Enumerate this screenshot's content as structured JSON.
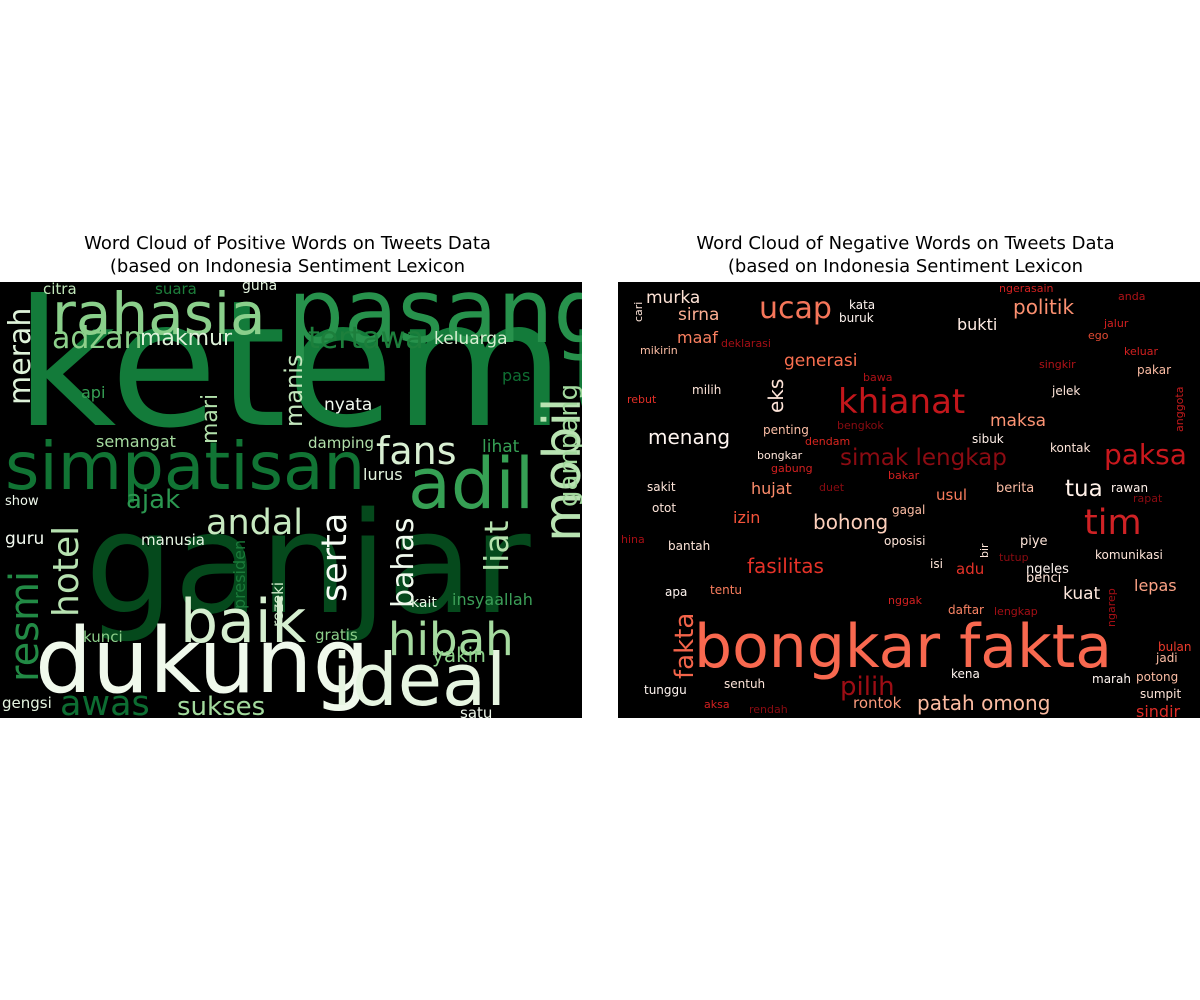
{
  "chart_data": [
    {
      "type": "wordcloud",
      "title": "Word Cloud of Positive Words on Tweets Data\n(based on Indonesia Sentiment Lexicon",
      "colormap": "Greens",
      "background": "#000000",
      "words": [
        {
          "text": "ketemu",
          "size": 1.0,
          "color": "#137b3a"
        },
        {
          "text": "ganjar",
          "size": 0.95,
          "color": "#05491c"
        },
        {
          "text": "dukung",
          "size": 0.62,
          "color": "#f0f9ec"
        },
        {
          "text": "pasang",
          "size": 0.6,
          "color": "#27924c"
        },
        {
          "text": "simpatisan",
          "size": 0.56,
          "color": "#117434"
        },
        {
          "text": "rahasia",
          "size": 0.58,
          "color": "#8acf8b"
        },
        {
          "text": "adil",
          "size": 0.52,
          "color": "#36a054"
        },
        {
          "text": "ideal",
          "size": 0.5,
          "color": "#e6f5e1"
        },
        {
          "text": "baik",
          "size": 0.45,
          "color": "#d6efd0"
        },
        {
          "text": "mobil",
          "size": 0.42,
          "color": "#b8e3b2"
        },
        {
          "text": "hibah",
          "size": 0.36,
          "color": "#a6dba0"
        },
        {
          "text": "fans",
          "size": 0.3,
          "color": "#d9f0d3"
        },
        {
          "text": "andal",
          "size": 0.28,
          "color": "#c7e9c0"
        },
        {
          "text": "serta",
          "size": 0.28,
          "color": "#f7fcf5"
        },
        {
          "text": "hotel",
          "size": 0.3,
          "color": "#b7e2b1"
        },
        {
          "text": "resmi",
          "size": 0.34,
          "color": "#228a45"
        },
        {
          "text": "awas",
          "size": 0.3,
          "color": "#0d6d32"
        },
        {
          "text": "adzan",
          "size": 0.26,
          "color": "#8ccf8a"
        },
        {
          "text": "merah",
          "size": 0.26,
          "color": "#dff3da"
        },
        {
          "text": "bahas",
          "size": 0.26,
          "color": "#f0f9ed"
        },
        {
          "text": "liat",
          "size": 0.26,
          "color": "#b4e1ad"
        },
        {
          "text": "tertawa",
          "size": 0.26,
          "color": "#1d7f3c"
        },
        {
          "text": "gampang",
          "size": 0.22,
          "color": "#a3d99e"
        },
        {
          "text": "sukses",
          "size": 0.2,
          "color": "#a3da9d"
        },
        {
          "text": "manis",
          "size": 0.2,
          "color": "#c3e7bd"
        },
        {
          "text": "ajak",
          "size": 0.2,
          "color": "#2b9750"
        },
        {
          "text": "makmur",
          "size": 0.18,
          "color": "#dff2da"
        },
        {
          "text": "mari",
          "size": 0.18,
          "color": "#b2e0ab"
        },
        {
          "text": "yakin",
          "size": 0.16,
          "color": "#8bcf89"
        },
        {
          "text": "insyaallah",
          "size": 0.13,
          "color": "#3c9f58"
        },
        {
          "text": "keluarga",
          "size": 0.13,
          "color": "#d8efd2"
        },
        {
          "text": "nyata",
          "size": 0.13,
          "color": "#f2faef"
        },
        {
          "text": "lurus",
          "size": 0.13,
          "color": "#e3f4de"
        },
        {
          "text": "damping",
          "size": 0.12,
          "color": "#b1dfaa"
        },
        {
          "text": "semangat",
          "size": 0.12,
          "color": "#a6dba0"
        },
        {
          "text": "lihat",
          "size": 0.13,
          "color": "#36a055"
        },
        {
          "text": "manusia",
          "size": 0.12,
          "color": "#e8f6e4"
        },
        {
          "text": "guru",
          "size": 0.14,
          "color": "#f3faf0"
        },
        {
          "text": "kunci",
          "size": 0.12,
          "color": "#8ccf8a"
        },
        {
          "text": "gratis",
          "size": 0.12,
          "color": "#8ccf8a"
        },
        {
          "text": "api",
          "size": 0.13,
          "color": "#36a055"
        },
        {
          "text": "pas",
          "size": 0.13,
          "color": "#0f6e32"
        },
        {
          "text": "citra",
          "size": 0.12,
          "color": "#c0e6b9"
        },
        {
          "text": "suara",
          "size": 0.12,
          "color": "#1d7e3b"
        },
        {
          "text": "guna",
          "size": 0.11,
          "color": "#e5f5e0"
        },
        {
          "text": "show",
          "size": 0.11,
          "color": "#f0f9ec"
        },
        {
          "text": "presiden",
          "size": 0.13,
          "color": "#1a7c3a"
        },
        {
          "text": "rezeki",
          "size": 0.12,
          "color": "#d3eecd"
        },
        {
          "text": "kait",
          "size": 0.11,
          "color": "#e8f6e4"
        },
        {
          "text": "satu",
          "size": 0.12,
          "color": "#f0f9ec"
        },
        {
          "text": "gengsi",
          "size": 0.12,
          "color": "#e5f5e0"
        }
      ]
    },
    {
      "type": "wordcloud",
      "title": "Word Cloud of Negative Words on Tweets Data\n(based on Indonesia Sentiment Lexicon",
      "colormap": "Reds",
      "background": "#000000",
      "words": [
        {
          "text": "bongkar fakta",
          "size": 1.0,
          "color": "#f8684f"
        },
        {
          "text": "khianat",
          "size": 0.5,
          "color": "#c3161b"
        },
        {
          "text": "tim",
          "size": 0.5,
          "color": "#d02225"
        },
        {
          "text": "ucap",
          "size": 0.44,
          "color": "#f6765a"
        },
        {
          "text": "paksa",
          "size": 0.4,
          "color": "#c9181d"
        },
        {
          "text": "pilih",
          "size": 0.38,
          "color": "#9c0d14"
        },
        {
          "text": "simak lengkap",
          "size": 0.36,
          "color": "#8c0b12"
        },
        {
          "text": "fakta",
          "size": 0.36,
          "color": "#f3644a"
        },
        {
          "text": "patah omong",
          "size": 0.34,
          "color": "#fcbca2"
        },
        {
          "text": "politik",
          "size": 0.33,
          "color": "#fc9070"
        },
        {
          "text": "eks",
          "size": 0.33,
          "color": "#fee4d8"
        },
        {
          "text": "tua",
          "size": 0.33,
          "color": "#fff0e8"
        },
        {
          "text": "menang",
          "size": 0.3,
          "color": "#fff5f0"
        },
        {
          "text": "bohong",
          "size": 0.3,
          "color": "#fdd0bc"
        },
        {
          "text": "fasilitas",
          "size": 0.3,
          "color": "#e53228"
        },
        {
          "text": "sirna",
          "size": 0.26,
          "color": "#fcae92"
        },
        {
          "text": "maksa",
          "size": 0.25,
          "color": "#fc9474"
        },
        {
          "text": "generasi",
          "size": 0.25,
          "color": "#fb7050"
        },
        {
          "text": "maaf",
          "size": 0.25,
          "color": "#fb8060"
        },
        {
          "text": "murka",
          "size": 0.25,
          "color": "#fee3d6"
        },
        {
          "text": "bukti",
          "size": 0.24,
          "color": "#ffece4"
        },
        {
          "text": "hujat",
          "size": 0.24,
          "color": "#fc8c6b"
        },
        {
          "text": "izin",
          "size": 0.24,
          "color": "#f5533b"
        },
        {
          "text": "kuat",
          "size": 0.24,
          "color": "#fee8dd"
        },
        {
          "text": "lepas",
          "size": 0.24,
          "color": "#fca285"
        },
        {
          "text": "usul",
          "size": 0.22,
          "color": "#fb7d5d"
        },
        {
          "text": "adu",
          "size": 0.22,
          "color": "#e53228"
        },
        {
          "text": "rontok",
          "size": 0.22,
          "color": "#fc9c7d"
        },
        {
          "text": "sindir",
          "size": 0.22,
          "color": "#de2c26"
        },
        {
          "text": "berita",
          "size": 0.19,
          "color": "#fcbda4"
        },
        {
          "text": "sibuk",
          "size": 0.19,
          "color": "#fff0e9"
        },
        {
          "text": "kontak",
          "size": 0.19,
          "color": "#fee5d9"
        },
        {
          "text": "rawan",
          "size": 0.19,
          "color": "#fff1ea"
        },
        {
          "text": "piye",
          "size": 0.19,
          "color": "#fee5d9"
        },
        {
          "text": "komunikasi",
          "size": 0.19,
          "color": "#fee5d9"
        },
        {
          "text": "marah",
          "size": 0.19,
          "color": "#fff5f0"
        },
        {
          "text": "sumpit",
          "size": 0.19,
          "color": "#fee5d9"
        },
        {
          "text": "ngeles",
          "size": 0.19,
          "color": "#fff5f0"
        },
        {
          "text": "benci",
          "size": 0.19,
          "color": "#fee5d9"
        },
        {
          "text": "daftar",
          "size": 0.18,
          "color": "#fc8565"
        },
        {
          "text": "kena",
          "size": 0.18,
          "color": "#fff5f0"
        },
        {
          "text": "sentuh",
          "size": 0.18,
          "color": "#fee5d9"
        },
        {
          "text": "tunggu",
          "size": 0.18,
          "color": "#fff5f0"
        },
        {
          "text": "apa",
          "size": 0.18,
          "color": "#fff5f0"
        },
        {
          "text": "tentu",
          "size": 0.18,
          "color": "#fb7e5e"
        },
        {
          "text": "bantah",
          "size": 0.18,
          "color": "#fee5d9"
        },
        {
          "text": "sakit",
          "size": 0.18,
          "color": "#fee5d9"
        },
        {
          "text": "otot",
          "size": 0.18,
          "color": "#fee5d9"
        },
        {
          "text": "milih",
          "size": 0.18,
          "color": "#fee5d9"
        },
        {
          "text": "penting",
          "size": 0.18,
          "color": "#fcbfa6"
        },
        {
          "text": "bongkar",
          "size": 0.17,
          "color": "#fee5d9"
        },
        {
          "text": "oposisi",
          "size": 0.17,
          "color": "#fee5d9"
        },
        {
          "text": "gagal",
          "size": 0.17,
          "color": "#fcbda4"
        },
        {
          "text": "isi",
          "size": 0.17,
          "color": "#fee5d9"
        },
        {
          "text": "jelek",
          "size": 0.17,
          "color": "#fee5d9"
        },
        {
          "text": "pakar",
          "size": 0.17,
          "color": "#fcbda4"
        },
        {
          "text": "buruk",
          "size": 0.17,
          "color": "#fff5f0"
        },
        {
          "text": "kata",
          "size": 0.17,
          "color": "#fff5f0"
        },
        {
          "text": "potong",
          "size": 0.17,
          "color": "#fcbda4"
        },
        {
          "text": "jadi",
          "size": 0.17,
          "color": "#fcbda4"
        },
        {
          "text": "bulan",
          "size": 0.17,
          "color": "#ef3b2c"
        },
        {
          "text": "mikirin",
          "size": 0.16,
          "color": "#fcbda4"
        },
        {
          "text": "deklarasi",
          "size": 0.16,
          "color": "#a50f15"
        },
        {
          "text": "rebut",
          "size": 0.16,
          "color": "#e32f27"
        },
        {
          "text": "bawa",
          "size": 0.16,
          "color": "#b01217"
        },
        {
          "text": "dendam",
          "size": 0.16,
          "color": "#d9261f"
        },
        {
          "text": "bengkok",
          "size": 0.16,
          "color": "#8a0b11"
        },
        {
          "text": "gabung",
          "size": 0.16,
          "color": "#d32020"
        },
        {
          "text": "bakar",
          "size": 0.16,
          "color": "#d32020"
        },
        {
          "text": "duet",
          "size": 0.16,
          "color": "#8a0b11"
        },
        {
          "text": "hina",
          "size": 0.16,
          "color": "#a50f15"
        },
        {
          "text": "nggak",
          "size": 0.16,
          "color": "#d32020"
        },
        {
          "text": "aksa",
          "size": 0.16,
          "color": "#d32020"
        },
        {
          "text": "rendah",
          "size": 0.16,
          "color": "#8a0b11"
        },
        {
          "text": "tutup",
          "size": 0.16,
          "color": "#8a0b11"
        },
        {
          "text": "lengkap",
          "size": 0.16,
          "color": "#a50f15"
        },
        {
          "text": "ngerasain",
          "size": 0.15,
          "color": "#d32020"
        },
        {
          "text": "anda",
          "size": 0.15,
          "color": "#b01217"
        },
        {
          "text": "jalur",
          "size": 0.15,
          "color": "#d32020"
        },
        {
          "text": "ego",
          "size": 0.15,
          "color": "#e34a33"
        },
        {
          "text": "keluar",
          "size": 0.15,
          "color": "#d32020"
        },
        {
          "text": "singkir",
          "size": 0.15,
          "color": "#b01217"
        },
        {
          "text": "rapat",
          "size": 0.15,
          "color": "#8a0b11"
        },
        {
          "text": "anggota",
          "size": 0.15,
          "color": "#c41a1c"
        },
        {
          "text": "cari",
          "size": 0.14,
          "color": "#fee5d9"
        },
        {
          "text": "bir",
          "size": 0.14,
          "color": "#fee5d9"
        },
        {
          "text": "ngarep",
          "size": 0.14,
          "color": "#a50f15"
        }
      ]
    }
  ]
}
